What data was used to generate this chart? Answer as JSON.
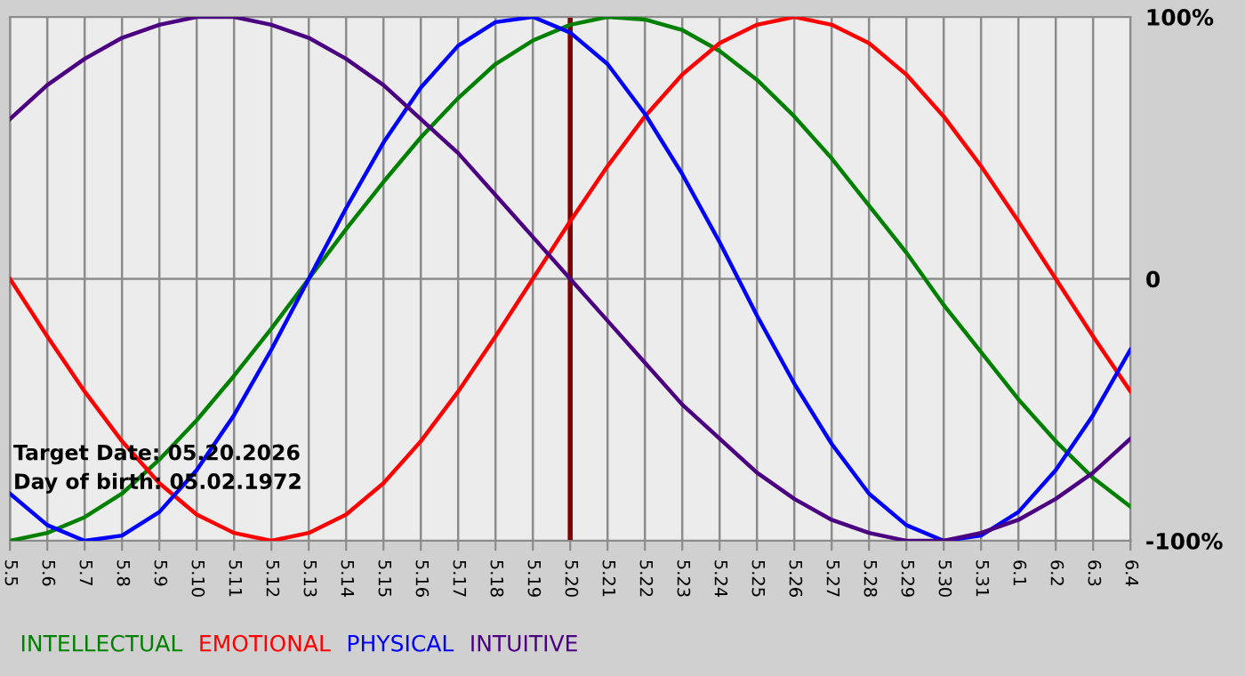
{
  "chart_data": {
    "type": "line",
    "categories": [
      "5.5",
      "5.6",
      "5.7",
      "5.8",
      "5.9",
      "5.10",
      "5.11",
      "5.12",
      "5.13",
      "5.14",
      "5.15",
      "5.16",
      "5.17",
      "5.18",
      "5.19",
      "5.20",
      "5.21",
      "5.22",
      "5.23",
      "5.24",
      "5.25",
      "5.26",
      "5.27",
      "5.28",
      "5.29",
      "5.30",
      "5.31",
      "6.1",
      "6.2",
      "6.3",
      "6.4"
    ],
    "series": [
      {
        "name": "INTELLECTUAL",
        "color": "#008000",
        "values": [
          -100,
          -97,
          -91,
          -82,
          -69,
          -54,
          -37,
          -19,
          0,
          19,
          37,
          54,
          69,
          82,
          91,
          97,
          100,
          99,
          95,
          87,
          76,
          62,
          46,
          28,
          10,
          -10,
          -28,
          -46,
          -62,
          -76,
          -87
        ]
      },
      {
        "name": "EMOTIONAL",
        "color": "#ff0000",
        "values": [
          0,
          -22,
          -43,
          -62,
          -78,
          -90,
          -97,
          -100,
          -97,
          -90,
          -78,
          -62,
          -43,
          -22,
          0,
          22,
          43,
          62,
          78,
          90,
          97,
          100,
          97,
          90,
          78,
          62,
          43,
          22,
          0,
          -22,
          -43
        ]
      },
      {
        "name": "PHYSICAL",
        "color": "#0000ff",
        "values": [
          -82,
          -94,
          -100,
          -98,
          -89,
          -73,
          -52,
          -27,
          0,
          27,
          52,
          73,
          89,
          98,
          100,
          94,
          82,
          63,
          40,
          14,
          -14,
          -40,
          -63,
          -82,
          -94,
          -100,
          -98,
          -89,
          -73,
          -52,
          -27
        ]
      },
      {
        "name": "INTUITIVE",
        "color": "#4b0082",
        "values": [
          61,
          74,
          84,
          92,
          97,
          100,
          100,
          97,
          92,
          84,
          74,
          61,
          48,
          32,
          16,
          0,
          -16,
          -32,
          -48,
          -61,
          -74,
          -84,
          -92,
          -97,
          -100,
          -100,
          -97,
          -92,
          -84,
          -74,
          -61
        ]
      }
    ],
    "ylim": [
      -100,
      100
    ],
    "yticks": [
      {
        "value": 100,
        "label": "100%"
      },
      0,
      {
        "value": -100,
        "label": "-100%"
      }
    ],
    "ref_lines": [
      {
        "axis": "x",
        "value": "5.20",
        "color": "#800000"
      }
    ],
    "annotations": [
      "Target Date: 05.20.2026",
      "Day of birth: 05.02.1972"
    ],
    "grid": true,
    "legend": "bottom",
    "marker": "none",
    "line_style": "solid"
  }
}
